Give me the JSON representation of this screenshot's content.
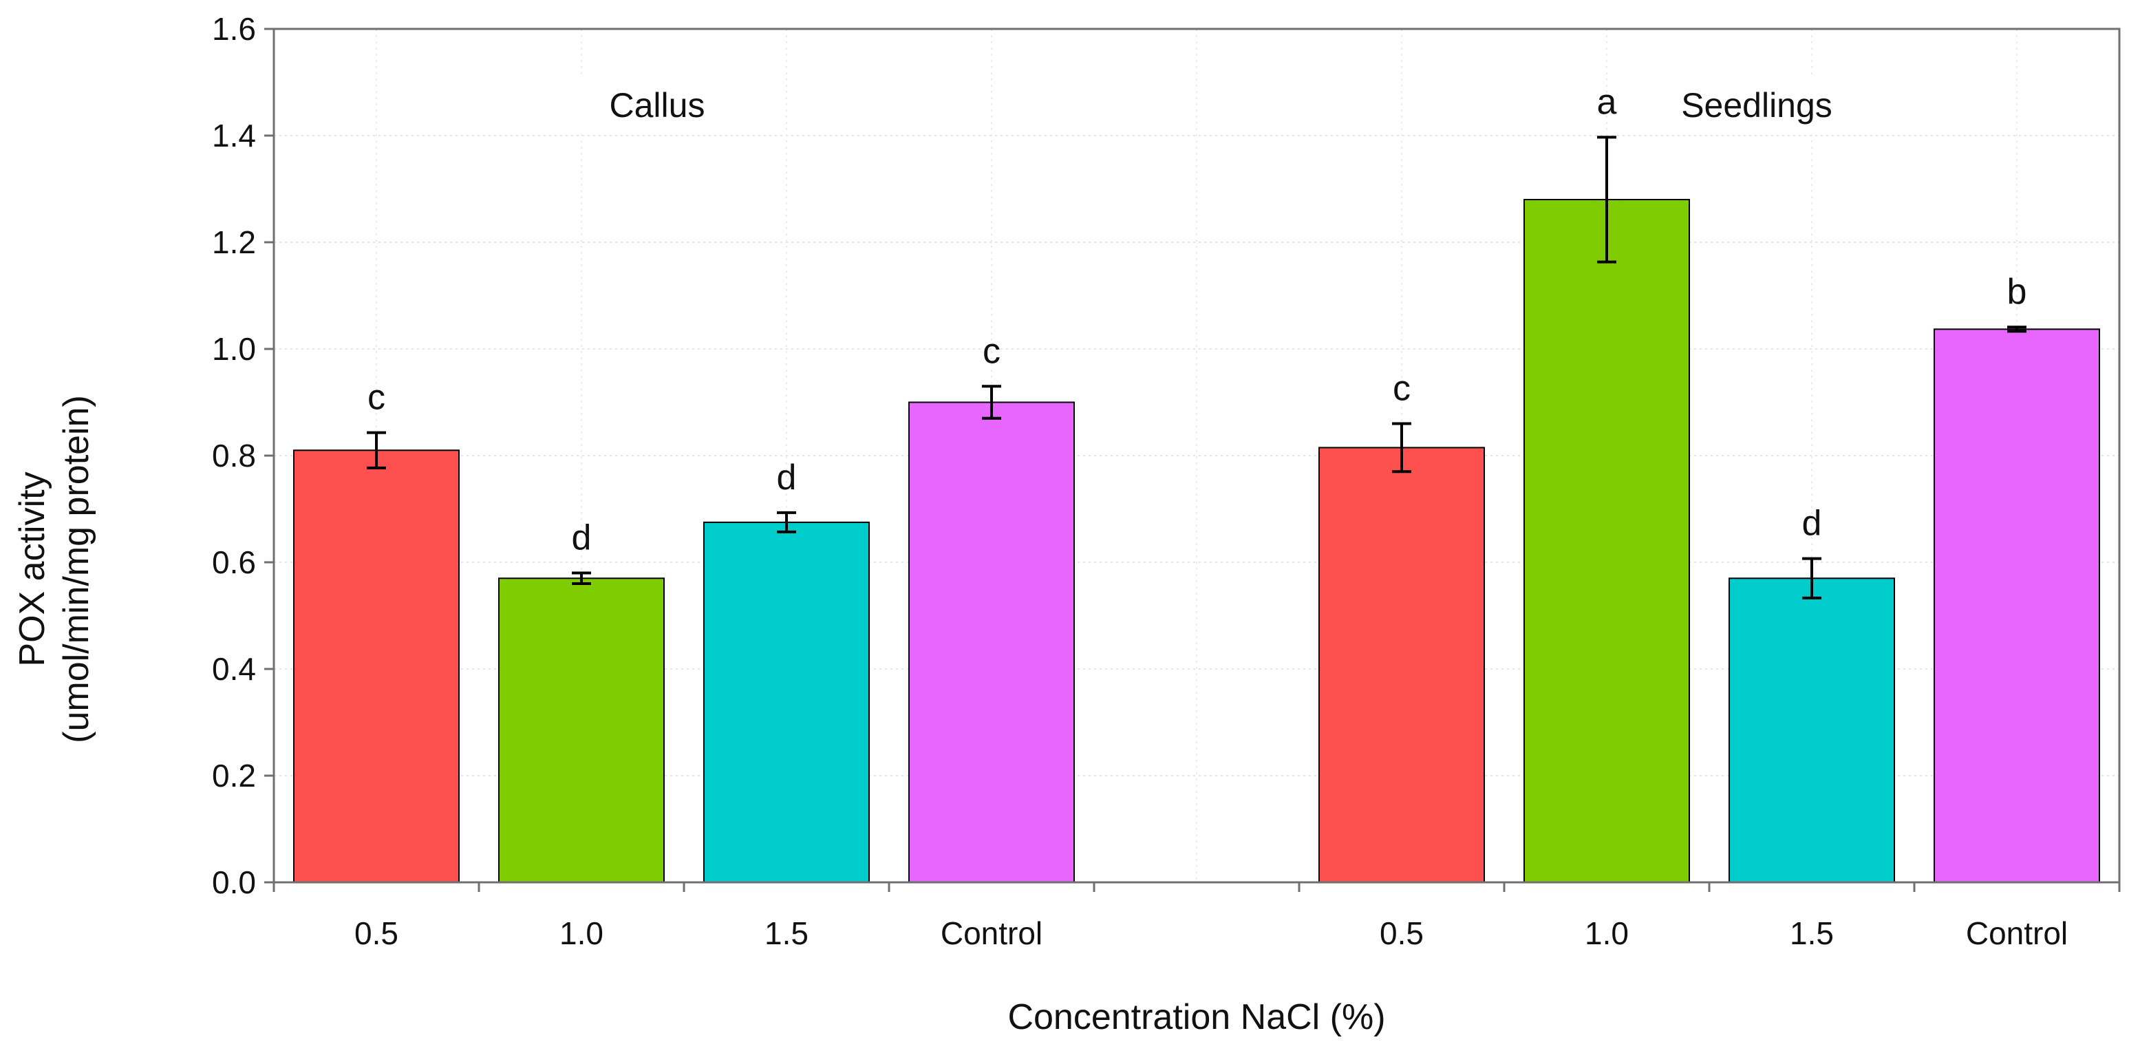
{
  "chart_data": {
    "type": "bar",
    "xlabel": "Concentration NaCl (%)",
    "ylabel_line1": "POX activity",
    "ylabel_line2": "(umol/min/mg protein)",
    "ylim": [
      0,
      1.6
    ],
    "yticks": [
      "0.0",
      "0.2",
      "0.4",
      "0.6",
      "0.8",
      "1.0",
      "1.2",
      "1.4",
      "1.6"
    ],
    "grid": true,
    "groups": [
      {
        "name": "Callus",
        "bars": [
          {
            "category": "0.5",
            "value": 0.81,
            "error": 0.033,
            "letter": "c",
            "color": "#ff5050"
          },
          {
            "category": "1.0",
            "value": 0.57,
            "error": 0.01,
            "letter": "d",
            "color": "#7fcc00"
          },
          {
            "category": "1.5",
            "value": 0.675,
            "error": 0.018,
            "letter": "d",
            "color": "#00cccc"
          },
          {
            "category": "Control",
            "value": 0.9,
            "error": 0.03,
            "letter": "c",
            "color": "#e666ff"
          }
        ]
      },
      {
        "name": "Seedlings",
        "bars": [
          {
            "category": "0.5",
            "value": 0.815,
            "error": 0.045,
            "letter": "c",
            "color": "#ff5050"
          },
          {
            "category": "1.0",
            "value": 1.28,
            "error": 0.117,
            "letter": "a",
            "color": "#7fcc00"
          },
          {
            "category": "1.5",
            "value": 0.57,
            "error": 0.037,
            "letter": "d",
            "color": "#00cccc"
          },
          {
            "category": "Control",
            "value": 1.037,
            "error": 0.004,
            "letter": "b",
            "color": "#e666ff"
          }
        ]
      }
    ]
  }
}
